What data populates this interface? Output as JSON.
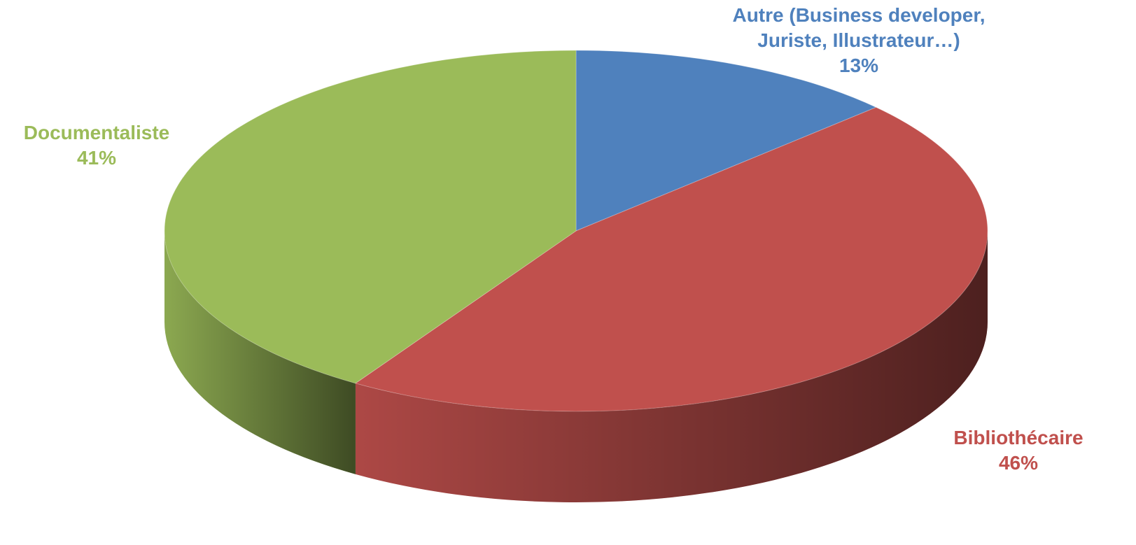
{
  "chart_data": {
    "type": "pie",
    "categories": [
      "Autre (Business developer, Juriste, Illustrateur…)",
      "Bibliothécaire",
      "Documentaliste"
    ],
    "values": [
      13,
      46,
      41
    ],
    "value_labels": [
      "13%",
      "46%",
      "41%"
    ],
    "colors": [
      "#4f81bd",
      "#c0504d",
      "#9bbb59"
    ]
  }
}
